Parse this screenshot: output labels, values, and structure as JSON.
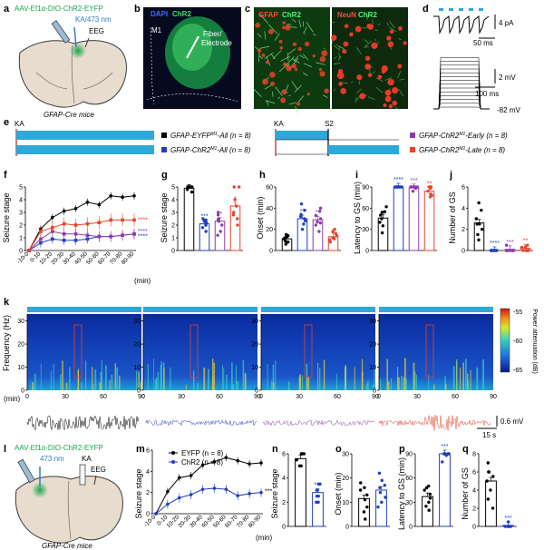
{
  "panels": {
    "a": {
      "letter": "a",
      "construct": "AAV-Ef1α-DIO-ChR2-EYFP",
      "laser": "KA/473 nm",
      "eeg": "EEG",
      "mouse": "GFAP-Cre mice"
    },
    "b": {
      "letter": "b",
      "stain_dapi": "DAPI",
      "stain_chr2": "ChR2",
      "region": "M1",
      "fiber_1": "Fiber/",
      "fiber_2": "Electrode"
    },
    "c": {
      "letter": "c",
      "left_gfap": "GFAP",
      "left_chr2": "ChR2",
      "right_neun": "NeuN",
      "right_chr2": "ChR2"
    },
    "d": {
      "letter": "d",
      "scale_pa": "4 pA",
      "scale_ms_top": "50 ms",
      "scale_mv": "2 mV",
      "scale_ms_bottom": "100 ms",
      "rest": "-82 mV"
    },
    "e": {
      "letter": "e",
      "ka_left": "KA",
      "ka_right": "KA",
      "s2": "S2",
      "legend": [
        {
          "label": "GFAP-EYFP",
          "sup": "M1",
          "suffix": "-All (n = 8)",
          "color": "#000000"
        },
        {
          "label": "GFAP-ChR2",
          "sup": "M1",
          "suffix": "-All (n = 8)",
          "color": "#1f3fbf"
        },
        {
          "label": "GFAP-ChR2",
          "sup": "M1",
          "suffix": "-Early (n = 8)",
          "color": "#8e3aa8"
        },
        {
          "label": "GFAP-ChR2",
          "sup": "M1",
          "suffix": "-Late (n = 8)",
          "color": "#e8432a"
        }
      ]
    },
    "f": {
      "letter": "f",
      "ylabel": "Seizure stage",
      "xunit": "(min)",
      "xticks": [
        "-10-0",
        "0-10",
        "10-20",
        "20-30",
        "30-40",
        "40-50",
        "50-60",
        "60-70",
        "70-80",
        "80-90"
      ],
      "yticks": [
        "0",
        "1",
        "2",
        "3",
        "4",
        "5"
      ],
      "sig": [
        "****",
        "****",
        "****"
      ]
    },
    "g": {
      "letter": "g",
      "ylabel": "Seizure stage",
      "yticks": [
        "0",
        "1",
        "2",
        "3",
        "4",
        "5"
      ],
      "sig": [
        "***",
        "**",
        "*"
      ]
    },
    "h": {
      "letter": "h",
      "ylabel": "Onset (min)",
      "yticks": [
        "0",
        "20",
        "40",
        "60"
      ],
      "sig": [
        "**",
        "**"
      ]
    },
    "i": {
      "letter": "i",
      "ylabel": "Latency to GS (min)",
      "yticks": [
        "0",
        "30",
        "60",
        "90"
      ],
      "sig": [
        "****",
        "***",
        "**"
      ]
    },
    "j": {
      "letter": "j",
      "ylabel": "Number of GS",
      "yticks": [
        "0",
        "2",
        "4",
        "6"
      ],
      "sig": [
        "****",
        "***",
        "**"
      ]
    },
    "k": {
      "letter": "k",
      "ylabel": "Frequency (Hz)",
      "yticks": [
        "0",
        "10",
        "20",
        "30"
      ],
      "xticks": [
        "0",
        "30",
        "60",
        "90"
      ],
      "xunit": "(min)",
      "cbar_label": "Power attenuation (dB)",
      "cbar_ticks": [
        "-55",
        "-60",
        "-65"
      ],
      "scale_mv": "0.6 mV",
      "scale_s": "15 s"
    },
    "l": {
      "letter": "l",
      "construct": "AAV-Ef1α-DIO-ChR2-EYFP",
      "laser": "473 nm",
      "ka": "KA",
      "eeg": "EEG",
      "mouse": "GFAP-Cre mice"
    },
    "m": {
      "letter": "m",
      "ylabel": "Seizure stage",
      "xunit": "(min)",
      "xticks": [
        "-10-0",
        "0-10",
        "10-20",
        "20-30",
        "30-40",
        "40-50",
        "50-60",
        "60-70",
        "70-80",
        "80-90"
      ],
      "yticks": [
        "0",
        "2",
        "4",
        "6"
      ],
      "legend": [
        {
          "label": "EYFP (n = 8)",
          "color": "#000000"
        },
        {
          "label": "ChR2 (n = 8)",
          "color": "#1f3fbf"
        }
      ],
      "sig": [
        "***"
      ]
    },
    "n": {
      "letter": "n",
      "ylabel": "Seizure stage",
      "yticks": [
        "0",
        "2",
        "4",
        "6"
      ],
      "sig": [
        "***"
      ]
    },
    "o": {
      "letter": "o",
      "ylabel": "Onset (min)",
      "yticks": [
        "0",
        "10",
        "20",
        "30"
      ]
    },
    "p": {
      "letter": "p",
      "ylabel": "Latency to GS (min)",
      "yticks": [
        "0",
        "30",
        "60",
        "90"
      ],
      "sig": [
        "***"
      ]
    },
    "q": {
      "letter": "q",
      "ylabel": "Number of GS",
      "yticks": [
        "0",
        "2",
        "4",
        "6",
        "8"
      ],
      "sig": [
        "***"
      ]
    }
  },
  "colors": {
    "eyfp": "#000000",
    "chr2": "#1f3fbf",
    "early": "#8e3aa8",
    "late": "#e8432a",
    "green": "#1aa64a",
    "stim": "#2ea8d8"
  },
  "chart_data": [
    {
      "type": "line",
      "panel": "f",
      "x": [
        "-10-0",
        "0-10",
        "10-20",
        "20-30",
        "30-40",
        "40-50",
        "50-60",
        "60-70",
        "70-80",
        "80-90"
      ],
      "ylim": [
        0,
        5
      ],
      "series": [
        {
          "name": "GFAP-EYFP-All",
          "values": [
            0,
            1.7,
            2.6,
            3.1,
            3.3,
            3.8,
            3.6,
            4.3,
            4.2,
            4.3
          ]
        },
        {
          "name": "GFAP-ChR2-All",
          "values": [
            0,
            0.6,
            0.9,
            0.8,
            0.8,
            0.9,
            1.1,
            1.1,
            1.2,
            1.3
          ]
        },
        {
          "name": "GFAP-ChR2-Early",
          "values": [
            0,
            0.9,
            1.5,
            1.3,
            1.3,
            1.2,
            1.1,
            1.1,
            1.2,
            1.3
          ]
        },
        {
          "name": "GFAP-ChR2-Late",
          "values": [
            0,
            1.5,
            1.8,
            2.1,
            2.0,
            2.1,
            2.2,
            2.4,
            2.4,
            2.4
          ]
        }
      ]
    },
    {
      "type": "bar",
      "panel": "g",
      "categories": [
        "EYFP-All",
        "ChR2-All",
        "ChR2-Early",
        "ChR2-Late"
      ],
      "values": [
        4.9,
        2.1,
        2.3,
        3.5
      ],
      "ylim": [
        0,
        5
      ],
      "points": [
        [
          5,
          5,
          5,
          5,
          4.8,
          5,
          4.6,
          5
        ],
        [
          1.5,
          2,
          2.5,
          1.8,
          2.2,
          2.4,
          2,
          2.3
        ],
        [
          1.2,
          2.3,
          2.8,
          3,
          2,
          1.5,
          2.5,
          2.4
        ],
        [
          2,
          2.5,
          3,
          5,
          5,
          2.8,
          3.5,
          4
        ]
      ]
    },
    {
      "type": "bar",
      "panel": "h",
      "categories": [
        "EYFP-All",
        "ChR2-All",
        "ChR2-Early",
        "ChR2-Late"
      ],
      "values": [
        11,
        30,
        29,
        13
      ],
      "ylim": [
        0,
        60
      ],
      "points": [
        [
          6,
          8,
          9,
          11,
          12,
          14,
          15,
          13
        ],
        [
          20,
          25,
          28,
          32,
          34,
          38,
          44,
          30
        ],
        [
          18,
          24,
          27,
          30,
          33,
          37,
          40,
          26
        ],
        [
          8,
          10,
          12,
          14,
          16,
          18,
          20,
          11
        ]
      ]
    },
    {
      "type": "bar",
      "panel": "i",
      "categories": [
        "EYFP-All",
        "ChR2-All",
        "ChR2-Early",
        "ChR2-Late"
      ],
      "values": [
        46,
        90,
        89,
        84
      ],
      "ylim": [
        0,
        90
      ],
      "points": [
        [
          25,
          35,
          40,
          45,
          50,
          55,
          62,
          54
        ],
        [
          90,
          90,
          90,
          90,
          90,
          90,
          90,
          90
        ],
        [
          90,
          90,
          90,
          90,
          88,
          90,
          84,
          90
        ],
        [
          90,
          84,
          76,
          90,
          88,
          80,
          90,
          78
        ]
      ]
    },
    {
      "type": "bar",
      "panel": "j",
      "categories": [
        "EYFP-All",
        "ChR2-All",
        "ChR2-Early",
        "ChR2-Late"
      ],
      "values": [
        2.6,
        0,
        0.1,
        0.2
      ],
      "ylim": [
        0,
        6
      ],
      "points": [
        [
          1,
          1.5,
          2,
          2.5,
          3,
          3.8,
          4.5,
          2.5
        ],
        [
          0,
          0,
          0,
          0,
          0,
          0,
          0,
          0
        ],
        [
          0,
          0,
          0,
          0.5,
          0,
          0,
          0,
          0
        ],
        [
          0,
          0,
          0.5,
          0,
          0.3,
          0,
          0,
          0.3
        ]
      ]
    },
    {
      "type": "line",
      "panel": "m",
      "x": [
        "-10-0",
        "0-10",
        "10-20",
        "20-30",
        "30-40",
        "40-50",
        "50-60",
        "60-70",
        "70-80",
        "80-90"
      ],
      "ylim": [
        0,
        6
      ],
      "series": [
        {
          "name": "EYFP",
          "values": [
            0,
            2.1,
            3.4,
            3.6,
            4.6,
            4.9,
            5.3,
            5.0,
            4.7,
            4.8
          ]
        },
        {
          "name": "ChR2",
          "values": [
            0,
            0.9,
            1.5,
            1.8,
            2.3,
            2.4,
            2.3,
            1.7,
            1.9,
            2.0
          ]
        }
      ]
    },
    {
      "type": "bar",
      "panel": "n",
      "categories": [
        "EYFP",
        "ChR2"
      ],
      "values": [
        5.6,
        2.8
      ],
      "ylim": [
        0,
        6
      ],
      "points": [
        [
          6,
          6,
          5.5,
          5,
          6,
          5.5,
          5,
          6
        ],
        [
          2,
          2,
          2.5,
          3,
          3.5,
          3,
          2.5,
          3.5
        ]
      ]
    },
    {
      "type": "bar",
      "panel": "o",
      "categories": [
        "EYFP",
        "ChR2"
      ],
      "values": [
        11.5,
        15
      ],
      "ylim": [
        0,
        30
      ],
      "points": [
        [
          3,
          6,
          8,
          11,
          13,
          15,
          18,
          16
        ],
        [
          8,
          10,
          12,
          14,
          16,
          19,
          22,
          17
        ]
      ]
    },
    {
      "type": "bar",
      "panel": "p",
      "categories": [
        "EYFP",
        "ChR2"
      ],
      "values": [
        37,
        90
      ],
      "ylim": [
        0,
        90
      ],
      "points": [
        [
          20,
          25,
          30,
          35,
          40,
          45,
          50,
          48
        ],
        [
          90,
          90,
          90,
          90,
          90,
          88,
          90,
          80
        ]
      ]
    },
    {
      "type": "bar",
      "panel": "q",
      "categories": [
        "EYFP",
        "ChR2"
      ],
      "values": [
        5,
        0.1
      ],
      "ylim": [
        0,
        8
      ],
      "points": [
        [
          2,
          3,
          4,
          5,
          5.5,
          6,
          7,
          6
        ],
        [
          0,
          0,
          0,
          0,
          0,
          0,
          0,
          0.5
        ]
      ]
    }
  ]
}
